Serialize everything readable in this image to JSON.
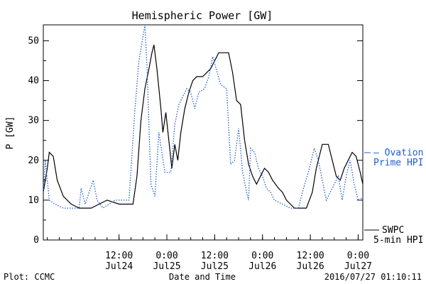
{
  "chart_data": {
    "type": "line",
    "title": "Hemispheric Power [GW]",
    "xlabel": "Date and Time",
    "ylabel": "P [GW]",
    "ylim": [
      0,
      54
    ],
    "yticks": [
      0,
      10,
      20,
      30,
      40,
      50
    ],
    "xlim": [
      "2016-07-23T17:00",
      "2016-07-27T01:10"
    ],
    "xticks": [
      {
        "time": "2016-07-24T12:00",
        "line1": "12:00",
        "line2": "Jul24"
      },
      {
        "time": "2016-07-25T00:00",
        "line1": "0:00",
        "line2": "Jul25"
      },
      {
        "time": "2016-07-25T12:00",
        "line1": "12:00",
        "line2": "Jul25"
      },
      {
        "time": "2016-07-26T00:00",
        "line1": "0:00",
        "line2": "Jul26"
      },
      {
        "time": "2016-07-26T12:00",
        "line1": "12:00",
        "line2": "Jul26"
      },
      {
        "time": "2016-07-27T00:00",
        "line1": "0:00",
        "line2": "Jul27"
      }
    ],
    "series": [
      {
        "name": "SWPC 5-min HPI",
        "color": "#000000",
        "style": "solid",
        "points": [
          [
            "2016-07-23T17:00",
            12
          ],
          [
            "2016-07-23T18:00",
            18
          ],
          [
            "2016-07-23T18:30",
            22
          ],
          [
            "2016-07-23T19:30",
            21
          ],
          [
            "2016-07-23T20:30",
            15
          ],
          [
            "2016-07-23T22:00",
            11
          ],
          [
            "2016-07-24T00:00",
            9
          ],
          [
            "2016-07-24T02:00",
            8
          ],
          [
            "2016-07-24T05:00",
            8
          ],
          [
            "2016-07-24T07:00",
            9
          ],
          [
            "2016-07-24T09:00",
            10
          ],
          [
            "2016-07-24T12:00",
            9
          ],
          [
            "2016-07-24T14:00",
            9
          ],
          [
            "2016-07-24T15:30",
            9
          ],
          [
            "2016-07-24T16:30",
            16
          ],
          [
            "2016-07-24T17:30",
            30
          ],
          [
            "2016-07-24T18:30",
            38
          ],
          [
            "2016-07-24T19:30",
            43
          ],
          [
            "2016-07-24T20:15",
            47
          ],
          [
            "2016-07-24T20:45",
            49
          ],
          [
            "2016-07-24T21:30",
            43
          ],
          [
            "2016-07-24T22:30",
            33
          ],
          [
            "2016-07-24T23:00",
            27
          ],
          [
            "2016-07-24T23:45",
            32
          ],
          [
            "2016-07-25T00:30",
            25
          ],
          [
            "2016-07-25T01:15",
            18
          ],
          [
            "2016-07-25T02:00",
            24
          ],
          [
            "2016-07-25T02:45",
            20
          ],
          [
            "2016-07-25T03:30",
            27
          ],
          [
            "2016-07-25T04:30",
            33
          ],
          [
            "2016-07-25T05:30",
            37
          ],
          [
            "2016-07-25T06:30",
            40
          ],
          [
            "2016-07-25T07:30",
            41
          ],
          [
            "2016-07-25T09:00",
            41
          ],
          [
            "2016-07-25T10:00",
            42
          ],
          [
            "2016-07-25T11:00",
            43
          ],
          [
            "2016-07-25T12:00",
            45
          ],
          [
            "2016-07-25T13:00",
            47
          ],
          [
            "2016-07-25T15:30",
            47
          ],
          [
            "2016-07-25T16:30",
            42
          ],
          [
            "2016-07-25T17:30",
            35
          ],
          [
            "2016-07-25T18:30",
            34
          ],
          [
            "2016-07-25T19:30",
            25
          ],
          [
            "2016-07-25T20:30",
            19
          ],
          [
            "2016-07-25T21:30",
            16
          ],
          [
            "2016-07-25T22:30",
            14
          ],
          [
            "2016-07-25T23:30",
            16
          ],
          [
            "2016-07-26T00:30",
            18
          ],
          [
            "2016-07-26T01:30",
            17
          ],
          [
            "2016-07-26T02:30",
            15
          ],
          [
            "2016-07-26T04:00",
            13
          ],
          [
            "2016-07-26T05:00",
            12
          ],
          [
            "2016-07-26T06:00",
            10
          ],
          [
            "2016-07-26T07:00",
            9
          ],
          [
            "2016-07-26T08:00",
            8
          ],
          [
            "2016-07-26T11:00",
            8
          ],
          [
            "2016-07-26T12:30",
            12
          ],
          [
            "2016-07-26T13:30",
            18
          ],
          [
            "2016-07-26T14:30",
            22
          ],
          [
            "2016-07-26T15:00",
            24
          ],
          [
            "2016-07-26T16:30",
            24
          ],
          [
            "2016-07-26T17:30",
            20
          ],
          [
            "2016-07-26T18:30",
            16
          ],
          [
            "2016-07-26T19:30",
            15
          ],
          [
            "2016-07-26T20:30",
            18
          ],
          [
            "2016-07-26T21:30",
            20
          ],
          [
            "2016-07-26T22:30",
            22
          ],
          [
            "2016-07-26T23:30",
            21
          ],
          [
            "2016-07-27T00:30",
            17
          ],
          [
            "2016-07-27T01:10",
            14
          ]
        ]
      },
      {
        "name": "Ovation Prime HPI",
        "color": "#1f5fd0",
        "style": "dotted",
        "points": [
          [
            "2016-07-23T17:00",
            12
          ],
          [
            "2016-07-23T17:30",
            20
          ],
          [
            "2016-07-23T18:30",
            10
          ],
          [
            "2016-07-23T20:00",
            9
          ],
          [
            "2016-07-23T22:00",
            8
          ],
          [
            "2016-07-24T02:00",
            8
          ],
          [
            "2016-07-24T02:30",
            13
          ],
          [
            "2016-07-24T03:30",
            9
          ],
          [
            "2016-07-24T05:30",
            15
          ],
          [
            "2016-07-24T06:30",
            10
          ],
          [
            "2016-07-24T08:00",
            8
          ],
          [
            "2016-07-24T11:00",
            10
          ],
          [
            "2016-07-24T14:30",
            10
          ],
          [
            "2016-07-24T16:00",
            33
          ],
          [
            "2016-07-24T17:00",
            45
          ],
          [
            "2016-07-24T18:30",
            54
          ],
          [
            "2016-07-24T19:00",
            44
          ],
          [
            "2016-07-24T20:00",
            14
          ],
          [
            "2016-07-24T21:00",
            11
          ],
          [
            "2016-07-24T22:00",
            27
          ],
          [
            "2016-07-24T23:30",
            17
          ],
          [
            "2016-07-25T01:00",
            17
          ],
          [
            "2016-07-25T02:00",
            29
          ],
          [
            "2016-07-25T03:00",
            34
          ],
          [
            "2016-07-25T04:00",
            36
          ],
          [
            "2016-07-25T05:00",
            38
          ],
          [
            "2016-07-25T06:00",
            37
          ],
          [
            "2016-07-25T07:00",
            33
          ],
          [
            "2016-07-25T08:00",
            37
          ],
          [
            "2016-07-25T09:30",
            38
          ],
          [
            "2016-07-25T10:30",
            41
          ],
          [
            "2016-07-25T11:30",
            46
          ],
          [
            "2016-07-25T13:30",
            39
          ],
          [
            "2016-07-25T15:00",
            38
          ],
          [
            "2016-07-25T16:00",
            19
          ],
          [
            "2016-07-25T17:00",
            20
          ],
          [
            "2016-07-25T18:00",
            28
          ],
          [
            "2016-07-25T19:00",
            17
          ],
          [
            "2016-07-25T20:00",
            12
          ],
          [
            "2016-07-25T20:30",
            10
          ],
          [
            "2016-07-25T21:00",
            23
          ],
          [
            "2016-07-25T22:00",
            22
          ],
          [
            "2016-07-25T23:00",
            18
          ],
          [
            "2016-07-26T00:00",
            16
          ],
          [
            "2016-07-26T01:00",
            13
          ],
          [
            "2016-07-26T02:00",
            12
          ],
          [
            "2016-07-26T03:00",
            10
          ],
          [
            "2016-07-26T05:00",
            9
          ],
          [
            "2016-07-26T07:00",
            8
          ],
          [
            "2016-07-26T09:00",
            8
          ],
          [
            "2016-07-26T10:00",
            12
          ],
          [
            "2016-07-26T11:30",
            17
          ],
          [
            "2016-07-26T13:00",
            23
          ],
          [
            "2016-07-26T14:00",
            20
          ],
          [
            "2016-07-26T15:00",
            15
          ],
          [
            "2016-07-26T16:00",
            10
          ],
          [
            "2016-07-26T17:00",
            12
          ],
          [
            "2016-07-26T18:00",
            14
          ],
          [
            "2016-07-26T19:00",
            16
          ],
          [
            "2016-07-26T20:00",
            10
          ],
          [
            "2016-07-26T21:00",
            16
          ],
          [
            "2016-07-26T22:00",
            20
          ],
          [
            "2016-07-26T23:00",
            14
          ],
          [
            "2016-07-27T00:00",
            10
          ],
          [
            "2016-07-27T00:30",
            10
          ],
          [
            "2016-07-27T01:10",
            11
          ]
        ]
      }
    ],
    "legend": [
      {
        "lines": [
          "– Ovation",
          "Prime HPI"
        ],
        "color": "#1f5fd0",
        "marker": "–"
      },
      {
        "lines": [
          "SWPC",
          "5-min HPI"
        ],
        "color": "#000000",
        "marker": "—"
      }
    ],
    "legend_placement": "right",
    "grid": false
  },
  "footer": {
    "left": "Plot: CCMC",
    "center": "Date and Time",
    "right": "2016/07/27 01:10:11"
  }
}
